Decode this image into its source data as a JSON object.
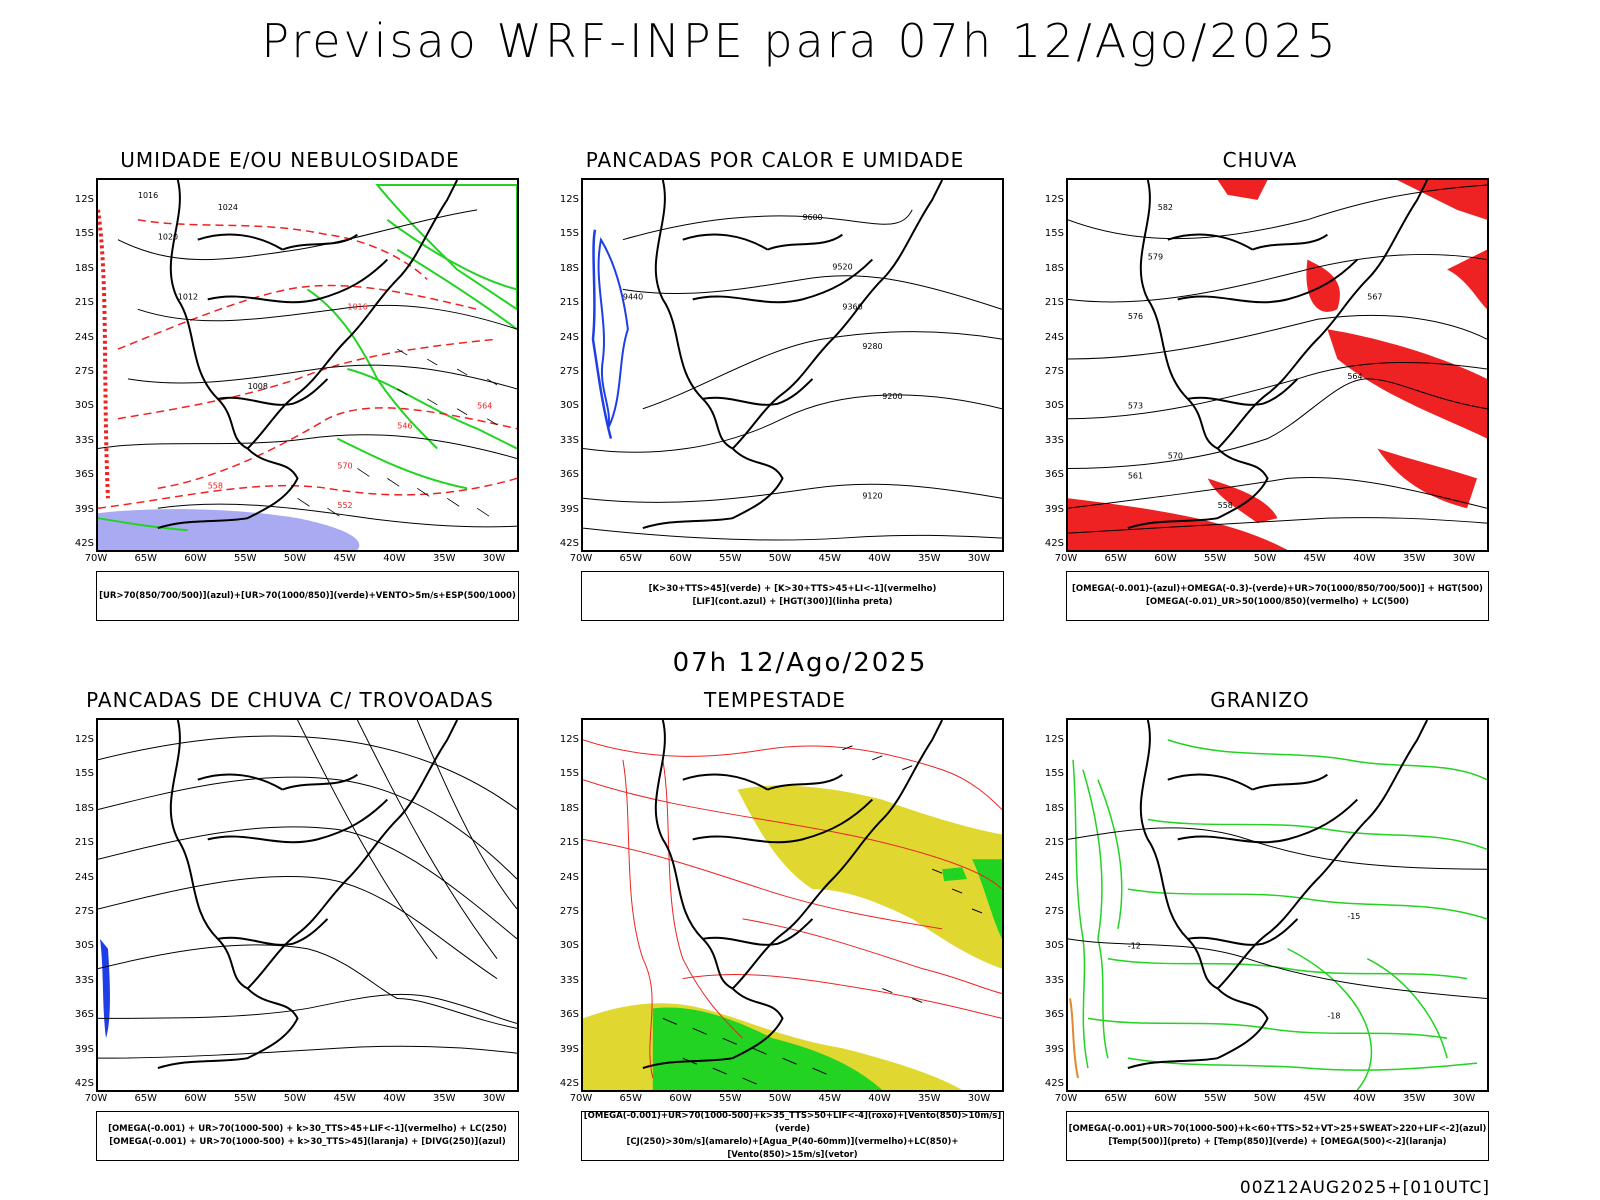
{
  "main_title": "Previsao WRF-INPE  para 07h 12/Ago/2025",
  "middle_title": "07h 12/Ago/2025",
  "footer": "00Z12AUG2025+[010UTC]",
  "lat_labels": [
    "12S",
    "15S",
    "18S",
    "21S",
    "24S",
    "27S",
    "30S",
    "33S",
    "36S",
    "39S",
    "42S"
  ],
  "lon_labels": [
    "70W",
    "65W",
    "60W",
    "55W",
    "50W",
    "45W",
    "40W",
    "35W",
    "30W"
  ],
  "colors": {
    "humidity_blue": "#a9aaf2",
    "green": "#22d322",
    "red": "#ee2222",
    "yellow": "#e0d830",
    "orange": "#e08830",
    "blue": "#1e3ee8"
  },
  "panels": [
    {
      "title": "UMIDADE E/OU NEBULOSIDADE",
      "legend": [
        "[UR>70(850/700/500)](azul)+[UR>70(1000/850)](verde)+VENTO>5m/s+ESP(500/1000)"
      ],
      "contour_labels": [
        "1016",
        "1020",
        "1024",
        "1012",
        "1008",
        "1016",
        "570",
        "564",
        "558",
        "552",
        "546"
      ]
    },
    {
      "title": "PANCADAS POR CALOR E UMIDADE",
      "legend": [
        "[K>30+TTS>45](verde) + [K>30+TTS>45+LI<-1](vermelho)",
        "[LIF](cont.azul) + [HGT(300)](linha preta)"
      ],
      "contour_labels": [
        "9600",
        "9520",
        "9440",
        "9360",
        "9280",
        "9200",
        "9120"
      ]
    },
    {
      "title": "CHUVA",
      "legend": [
        "[OMEGA(-0.001)-(azul)+OMEGA(-0.3)-(verde)+UR>70(1000/850/700/500)] + HGT(500)",
        "[OMEGA(-0.01)_UR>50(1000/850)(vermelho) + LC(500)"
      ],
      "contour_labels": [
        "582",
        "579",
        "576",
        "573",
        "570",
        "567",
        "564",
        "561",
        "558"
      ]
    },
    {
      "title": "PANCADAS DE CHUVA C/ TROVOADAS",
      "legend": [
        "[OMEGA(-0.001) + UR>70(1000-500) + k>30_TTS>45+LIF<-1](vermelho) + LC(250)",
        "[OMEGA(-0.001) + UR>70(1000-500) + k>30_TTS>45](laranja) + [DIVG(250)](azul)"
      ],
      "contour_labels": []
    },
    {
      "title": "TEMPESTADE",
      "legend": [
        "[OMEGA(-0.001)+UR>70(1000-500)+k>35_TTS>50+LIF<-4](roxo)+[Vento(850)>10m/s](verde)",
        "[CJ(250)>30m/s](amarelo)+[Agua_P(40-60mm)](vermelho)+LC(850)+[Vento(850)>15m/s](vetor)"
      ],
      "contour_labels": []
    },
    {
      "title": "GRANIZO",
      "legend": [
        "[OMEGA(-0.001)+UR>70(1000-500)+k<60+TTS>52+VT>25+SWEAT>220+LIF<-2](azul)",
        "[Temp(500)](preto) + [Temp(850)](verde) + [OMEGA(500)<-2](laranja)"
      ],
      "contour_labels": [
        "-12",
        "-15",
        "-18"
      ]
    }
  ]
}
